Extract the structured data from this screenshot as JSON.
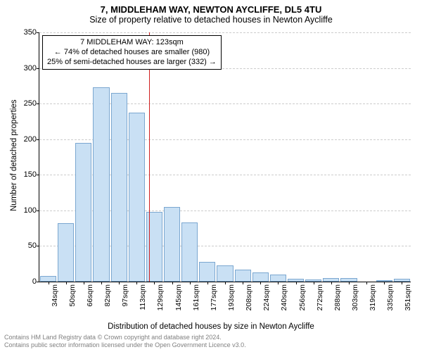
{
  "title": "7, MIDDLEHAM WAY, NEWTON AYCLIFFE, DL5 4TU",
  "subtitle": "Size of property relative to detached houses in Newton Aycliffe",
  "y_axis": {
    "label": "Number of detached properties",
    "min": 0,
    "max": 350,
    "step": 50,
    "ticks": [
      0,
      50,
      100,
      150,
      200,
      250,
      300,
      350
    ]
  },
  "x_axis": {
    "label": "Distribution of detached houses by size in Newton Aycliffe",
    "ticks": [
      "34sqm",
      "50sqm",
      "66sqm",
      "82sqm",
      "97sqm",
      "113sqm",
      "129sqm",
      "145sqm",
      "161sqm",
      "177sqm",
      "193sqm",
      "208sqm",
      "224sqm",
      "240sqm",
      "256sqm",
      "272sqm",
      "288sqm",
      "303sqm",
      "319sqm",
      "335sqm",
      "351sqm"
    ]
  },
  "bars": {
    "values": [
      8,
      82,
      195,
      273,
      265,
      237,
      98,
      105,
      83,
      28,
      23,
      17,
      13,
      10,
      4,
      3,
      5,
      5,
      0,
      2,
      4
    ],
    "fill_color": "#c9e0f4",
    "border_color": "#7ba7d0",
    "width_fraction": 0.92
  },
  "marker": {
    "position_index": 5.7,
    "color": "#d02020"
  },
  "annotation": {
    "line1": "7 MIDDLEHAM WAY: 123sqm",
    "line2": "← 74% of detached houses are smaller (980)",
    "line3": "25% of semi-detached houses are larger (332) →"
  },
  "footer": {
    "line1": "Contains HM Land Registry data © Crown copyright and database right 2024.",
    "line2": "Contains public sector information licensed under the Open Government Licence v3.0."
  },
  "style": {
    "background_color": "#ffffff",
    "grid_color": "#cccccc",
    "text_color": "#000000",
    "footer_color": "#808080",
    "title_fontsize": 13,
    "subtitle_fontsize": 12.5,
    "axis_label_fontsize": 11.5,
    "tick_fontsize": 11,
    "annotation_fontsize": 11,
    "footer_fontsize": 9
  }
}
